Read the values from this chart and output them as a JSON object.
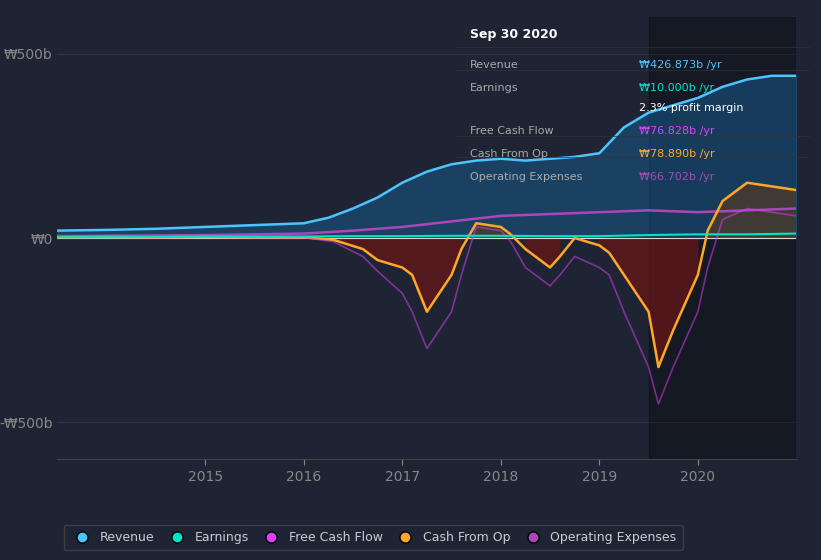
{
  "bg_color": "#1e2433",
  "plot_bg_color": "#1e2433",
  "info_box": {
    "title": "Sep 30 2020",
    "rows": [
      {
        "label": "Revenue",
        "value": "₩426.873b /yr",
        "color": "#4dc3ff"
      },
      {
        "label": "Earnings",
        "value": "₩10.000b /yr",
        "color": "#00e5c8"
      },
      {
        "label": "",
        "value": "2.3% profit margin",
        "color": "#ffffff"
      },
      {
        "label": "Free Cash Flow",
        "value": "₩76.828b /yr",
        "color": "#e040fb"
      },
      {
        "label": "Cash From Op",
        "value": "₩78.890b /yr",
        "color": "#ffa726"
      },
      {
        "label": "Operating Expenses",
        "value": "₩66.702b /yr",
        "color": "#ab47bc"
      }
    ]
  },
  "ylim": [
    -600,
    600
  ],
  "ylabel_ticks": [
    500,
    0,
    -500
  ],
  "ylabel_labels": [
    "₩500b",
    "₩0",
    "-₩500b"
  ],
  "xlim_start": 2013.5,
  "xlim_end": 2021.0,
  "xticks": [
    2015,
    2016,
    2017,
    2018,
    2019,
    2020
  ],
  "legend_items": [
    {
      "label": "Revenue",
      "color": "#4dc3ff"
    },
    {
      "label": "Earnings",
      "color": "#00e5c8"
    },
    {
      "label": "Free Cash Flow",
      "color": "#e040fb"
    },
    {
      "label": "Cash From Op",
      "color": "#ffa726"
    },
    {
      "label": "Operating Expenses",
      "color": "#ab47bc"
    }
  ],
  "revenue_x": [
    2013.5,
    2014.0,
    2014.5,
    2015.0,
    2015.5,
    2016.0,
    2016.25,
    2016.5,
    2016.75,
    2017.0,
    2017.25,
    2017.5,
    2017.75,
    2018.0,
    2018.25,
    2018.5,
    2018.75,
    2019.0,
    2019.25,
    2019.5,
    2019.75,
    2020.0,
    2020.25,
    2020.5,
    2020.75,
    2021.0
  ],
  "revenue_y": [
    20,
    22,
    25,
    30,
    35,
    40,
    55,
    80,
    110,
    150,
    180,
    200,
    210,
    215,
    210,
    215,
    220,
    230,
    300,
    340,
    360,
    380,
    410,
    430,
    440,
    440
  ],
  "earnings_x": [
    2013.5,
    2014.0,
    2014.5,
    2015.0,
    2015.5,
    2016.0,
    2016.5,
    2017.0,
    2017.5,
    2018.0,
    2018.5,
    2019.0,
    2019.5,
    2020.0,
    2020.5,
    2021.0
  ],
  "earnings_y": [
    2,
    2,
    3,
    3,
    4,
    4,
    5,
    5,
    6,
    6,
    5,
    5,
    8,
    10,
    10,
    12
  ],
  "fcf_x": [
    2013.5,
    2014.0,
    2014.5,
    2015.0,
    2015.5,
    2016.0,
    2016.3,
    2016.6,
    2016.75,
    2017.0,
    2017.1,
    2017.25,
    2017.5,
    2017.6,
    2017.75,
    2018.0,
    2018.1,
    2018.25,
    2018.5,
    2018.6,
    2018.75,
    2019.0,
    2019.1,
    2019.25,
    2019.5,
    2019.6,
    2019.75,
    2020.0,
    2020.1,
    2020.25,
    2020.5,
    2020.75,
    2021.0
  ],
  "fcf_y": [
    2,
    2,
    1,
    2,
    1,
    1,
    -10,
    -50,
    -90,
    -150,
    -200,
    -300,
    -200,
    -100,
    30,
    20,
    -10,
    -80,
    -130,
    -100,
    -50,
    -80,
    -100,
    -200,
    -350,
    -450,
    -350,
    -200,
    -80,
    50,
    80,
    70,
    60
  ],
  "cashfromop_x": [
    2013.5,
    2014.0,
    2014.5,
    2015.0,
    2015.5,
    2016.0,
    2016.3,
    2016.6,
    2016.75,
    2017.0,
    2017.1,
    2017.25,
    2017.5,
    2017.6,
    2017.75,
    2018.0,
    2018.1,
    2018.25,
    2018.5,
    2018.6,
    2018.75,
    2019.0,
    2019.1,
    2019.25,
    2019.5,
    2019.6,
    2019.75,
    2020.0,
    2020.1,
    2020.25,
    2020.5,
    2020.75,
    2021.0
  ],
  "cashfromop_y": [
    2,
    3,
    2,
    3,
    2,
    2,
    -5,
    -30,
    -60,
    -80,
    -100,
    -200,
    -100,
    -30,
    40,
    30,
    10,
    -30,
    -80,
    -50,
    0,
    -20,
    -40,
    -100,
    -200,
    -350,
    -250,
    -100,
    20,
    100,
    150,
    140,
    130
  ],
  "opex_x": [
    2013.5,
    2014.0,
    2014.5,
    2015.0,
    2015.5,
    2016.0,
    2016.5,
    2017.0,
    2017.5,
    2018.0,
    2018.5,
    2019.0,
    2019.5,
    2020.0,
    2020.5,
    2021.0
  ],
  "opex_y": [
    5,
    6,
    7,
    8,
    10,
    12,
    20,
    30,
    45,
    60,
    65,
    70,
    75,
    70,
    75,
    80
  ],
  "dark_overlay_start": 2019.5,
  "revenue_fill_color": "#1a5a8a",
  "cashfromop_fill_neg_color": "#6b1515",
  "cashfromop_fill_pos_color": "#5c3a1a"
}
